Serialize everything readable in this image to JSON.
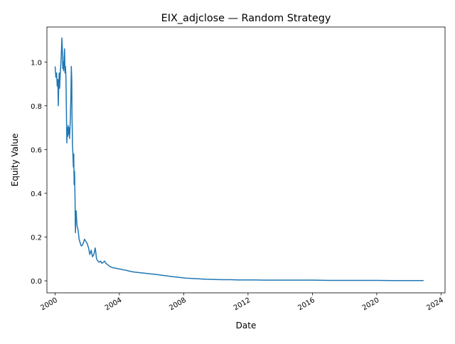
{
  "chart_data": {
    "type": "line",
    "title": "EIX_adjclose — Random Strategy",
    "xlabel": "Date",
    "ylabel": "Equity Value",
    "xlim": [
      "1999-07-01",
      "2024-04-01"
    ],
    "ylim": [
      -0.055,
      1.16
    ],
    "grid": false,
    "legend": "none",
    "colors": {
      "line": "#1f77b4"
    },
    "x_ticks": [
      "2000",
      "2004",
      "2008",
      "2012",
      "2016",
      "2020",
      "2024"
    ],
    "y_ticks": [
      "0.0",
      "0.2",
      "0.4",
      "0.6",
      "0.8",
      "1.0"
    ],
    "series": [
      {
        "x": [
          "2000-01-03",
          "2000-01-20",
          "2000-02-05",
          "2000-02-20",
          "2000-03-05",
          "2000-03-15",
          "2000-03-25",
          "2000-04-05",
          "2000-04-15",
          "2000-04-25",
          "2000-05-05",
          "2000-05-15",
          "2000-05-25",
          "2000-06-05",
          "2000-06-15",
          "2000-06-25",
          "2000-07-05",
          "2000-07-15",
          "2000-07-25",
          "2000-08-05",
          "2000-08-15",
          "2000-08-25",
          "2000-09-05",
          "2000-09-15",
          "2000-09-25",
          "2000-10-05",
          "2000-10-15",
          "2000-10-25",
          "2000-11-05",
          "2000-11-15",
          "2000-11-25",
          "2000-12-05",
          "2000-12-15",
          "2000-12-25",
          "2001-01-05",
          "2001-01-15",
          "2001-01-20",
          "2001-01-25",
          "2001-02-01",
          "2001-02-10",
          "2001-02-20",
          "2001-03-01",
          "2001-03-10",
          "2001-03-20",
          "2001-04-01",
          "2001-04-05",
          "2001-04-10",
          "2001-04-15",
          "2001-04-25",
          "2001-05-05",
          "2001-05-15",
          "2001-06-01",
          "2001-06-15",
          "2001-07-01",
          "2001-07-15",
          "2001-08-01",
          "2001-08-15",
          "2001-09-01",
          "2001-10-01",
          "2001-11-01",
          "2001-12-01",
          "2002-01-01",
          "2002-02-01",
          "2002-03-01",
          "2002-04-01",
          "2002-05-01",
          "2002-06-01",
          "2002-07-01",
          "2002-07-15",
          "2002-08-01",
          "2002-09-01",
          "2002-10-01",
          "2002-11-01",
          "2002-12-01",
          "2003-01-01",
          "2003-02-01",
          "2003-03-01",
          "2003-04-01",
          "2003-05-01",
          "2003-06-01",
          "2003-08-01",
          "2003-10-01",
          "2003-12-01",
          "2004-02-01",
          "2004-04-01",
          "2004-06-01",
          "2004-08-01",
          "2004-10-01",
          "2004-12-01",
          "2005-03-01",
          "2005-06-01",
          "2005-09-01",
          "2005-12-01",
          "2006-03-01",
          "2006-06-01",
          "2006-09-01",
          "2006-12-01",
          "2007-03-01",
          "2007-06-01",
          "2007-09-01",
          "2007-12-01",
          "2008-03-01",
          "2008-06-01",
          "2008-09-01",
          "2008-12-01",
          "2009-03-01",
          "2009-06-01",
          "2009-12-01",
          "2010-06-01",
          "2010-12-01",
          "2011-06-01",
          "2011-12-01",
          "2012-06-01",
          "2013-01-01",
          "2014-01-01",
          "2015-01-01",
          "2016-01-01",
          "2017-01-01",
          "2018-01-01",
          "2019-01-01",
          "2020-01-01",
          "2021-01-01",
          "2022-01-01",
          "2022-12-01"
        ],
        "values": [
          0.98,
          0.93,
          0.95,
          0.89,
          0.92,
          0.8,
          0.89,
          0.95,
          0.88,
          0.93,
          0.97,
          1.0,
          1.05,
          1.11,
          1.06,
          0.97,
          1.0,
          0.96,
          1.02,
          1.06,
          0.95,
          0.98,
          0.93,
          0.78,
          0.63,
          0.7,
          0.66,
          0.71,
          0.67,
          0.7,
          0.65,
          0.69,
          0.75,
          0.83,
          0.98,
          0.92,
          0.76,
          0.71,
          0.62,
          0.58,
          0.52,
          0.58,
          0.44,
          0.5,
          0.35,
          0.26,
          0.22,
          0.3,
          0.32,
          0.28,
          0.25,
          0.24,
          0.22,
          0.19,
          0.18,
          0.17,
          0.16,
          0.16,
          0.17,
          0.19,
          0.18,
          0.17,
          0.15,
          0.12,
          0.14,
          0.11,
          0.12,
          0.15,
          0.13,
          0.1,
          0.09,
          0.085,
          0.09,
          0.08,
          0.085,
          0.09,
          0.08,
          0.075,
          0.07,
          0.065,
          0.06,
          0.058,
          0.055,
          0.053,
          0.05,
          0.048,
          0.045,
          0.042,
          0.04,
          0.038,
          0.036,
          0.034,
          0.032,
          0.03,
          0.028,
          0.025,
          0.023,
          0.02,
          0.018,
          0.016,
          0.014,
          0.012,
          0.011,
          0.01,
          0.009,
          0.008,
          0.007,
          0.006,
          0.005,
          0.005,
          0.004,
          0.004,
          0.004,
          0.003,
          0.003,
          0.003,
          0.003,
          0.002,
          0.002,
          0.002,
          0.002,
          0.001,
          0.001,
          0.001
        ]
      }
    ]
  }
}
